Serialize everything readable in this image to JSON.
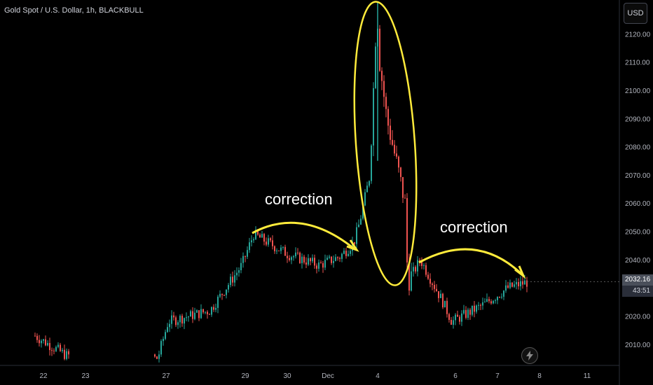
{
  "header": {
    "title": "Gold Spot / U.S. Dollar, 1h, BLACKBULL",
    "currency": "USD"
  },
  "price_tag": {
    "current": "2032.16",
    "countdown": "43:51"
  },
  "annotations": {
    "label_left": "correction",
    "label_right": "correction"
  },
  "icons": {
    "bolt": "lightning-bolt-icon"
  },
  "colors": {
    "up": "#26a69a",
    "down": "#ef5350",
    "annotation": "#ffeb3b",
    "background": "#000000"
  },
  "chart_data": {
    "type": "candlestick",
    "y_ticks": [
      "2010.00",
      "2020.00",
      "2030.00",
      "2040.00",
      "2050.00",
      "2060.00",
      "2070.00",
      "2080.00",
      "2090.00",
      "2100.00",
      "2110.00",
      "2120.00"
    ],
    "x_ticks": [
      "22",
      "23",
      "27",
      "29",
      "30",
      "Dec",
      "4",
      "6",
      "7",
      "8",
      "11"
    ],
    "ylim": [
      2003,
      2131
    ],
    "trend": [
      {
        "t": "22",
        "p": 2013
      },
      {
        "t": "23",
        "p": 2006
      },
      {
        "t": "27",
        "p": 2005
      },
      {
        "t": "27.2",
        "p": 2018
      },
      {
        "t": "28",
        "p": 2022
      },
      {
        "t": "29",
        "p": 2038
      },
      {
        "t": "29.1",
        "p": 2049
      },
      {
        "t": "30",
        "p": 2042
      },
      {
        "t": "Dec",
        "p": 2038
      },
      {
        "t": "1",
        "p": 2041
      },
      {
        "t": "1.2",
        "p": 2046
      },
      {
        "t": "Dec 1 close",
        "p": 2053
      },
      {
        "t": "4 open",
        "p": 2070
      },
      {
        "t": "4 high",
        "p": 2131
      },
      {
        "t": "4",
        "p": 2112
      },
      {
        "t": "4.3",
        "p": 2090
      },
      {
        "t": "4.6",
        "p": 2072
      },
      {
        "t": "5",
        "p": 2060
      },
      {
        "t": "5.2",
        "p": 2032
      },
      {
        "t": "5.5",
        "p": 2040
      },
      {
        "t": "6",
        "p": 2025
      },
      {
        "t": "6.2",
        "p": 2018
      },
      {
        "t": "6.5",
        "p": 2024
      },
      {
        "t": "7",
        "p": 2030
      },
      {
        "t": "7.5",
        "p": 2032
      }
    ],
    "last_price": 2032.16
  }
}
